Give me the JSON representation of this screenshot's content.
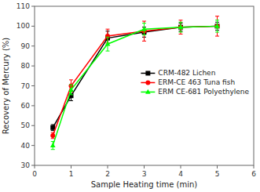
{
  "chart_data": {
    "type": "line",
    "xlabel": "Sample Heating time (min)",
    "ylabel": "Recovery of Mercury (%)",
    "x": [
      0.5,
      1,
      2,
      3,
      4,
      5
    ],
    "series": [
      {
        "name": "CRM-482 Lichen",
        "color": "#000000",
        "marker": "square",
        "values": [
          49,
          65,
          94,
          97,
          99.5,
          100
        ],
        "errors": [
          1.5,
          2.5,
          3.5,
          2.5,
          2.0,
          2.0
        ]
      },
      {
        "name": "ERM-CE 463 Tuna fish",
        "color": "#ff0000",
        "marker": "circle",
        "values": [
          45,
          70,
          95,
          97.5,
          99.5,
          100
        ],
        "errors": [
          1.5,
          3.0,
          3.5,
          5.0,
          3.5,
          5.0
        ]
      },
      {
        "name": "ERM CE-681 Polyethylene",
        "color": "#00ff00",
        "marker": "triangle",
        "values": [
          40,
          68,
          91,
          98.5,
          99.5,
          100
        ],
        "errors": [
          2.0,
          2.5,
          3.5,
          3.0,
          2.5,
          3.0
        ]
      }
    ],
    "xlim": [
      0,
      6
    ],
    "ylim": [
      30,
      110
    ],
    "xticks": [
      0,
      1,
      2,
      3,
      4,
      5,
      6
    ],
    "yticks": [
      30,
      40,
      50,
      60,
      70,
      80,
      90,
      100,
      110
    ],
    "grid": false,
    "legend": "right"
  }
}
